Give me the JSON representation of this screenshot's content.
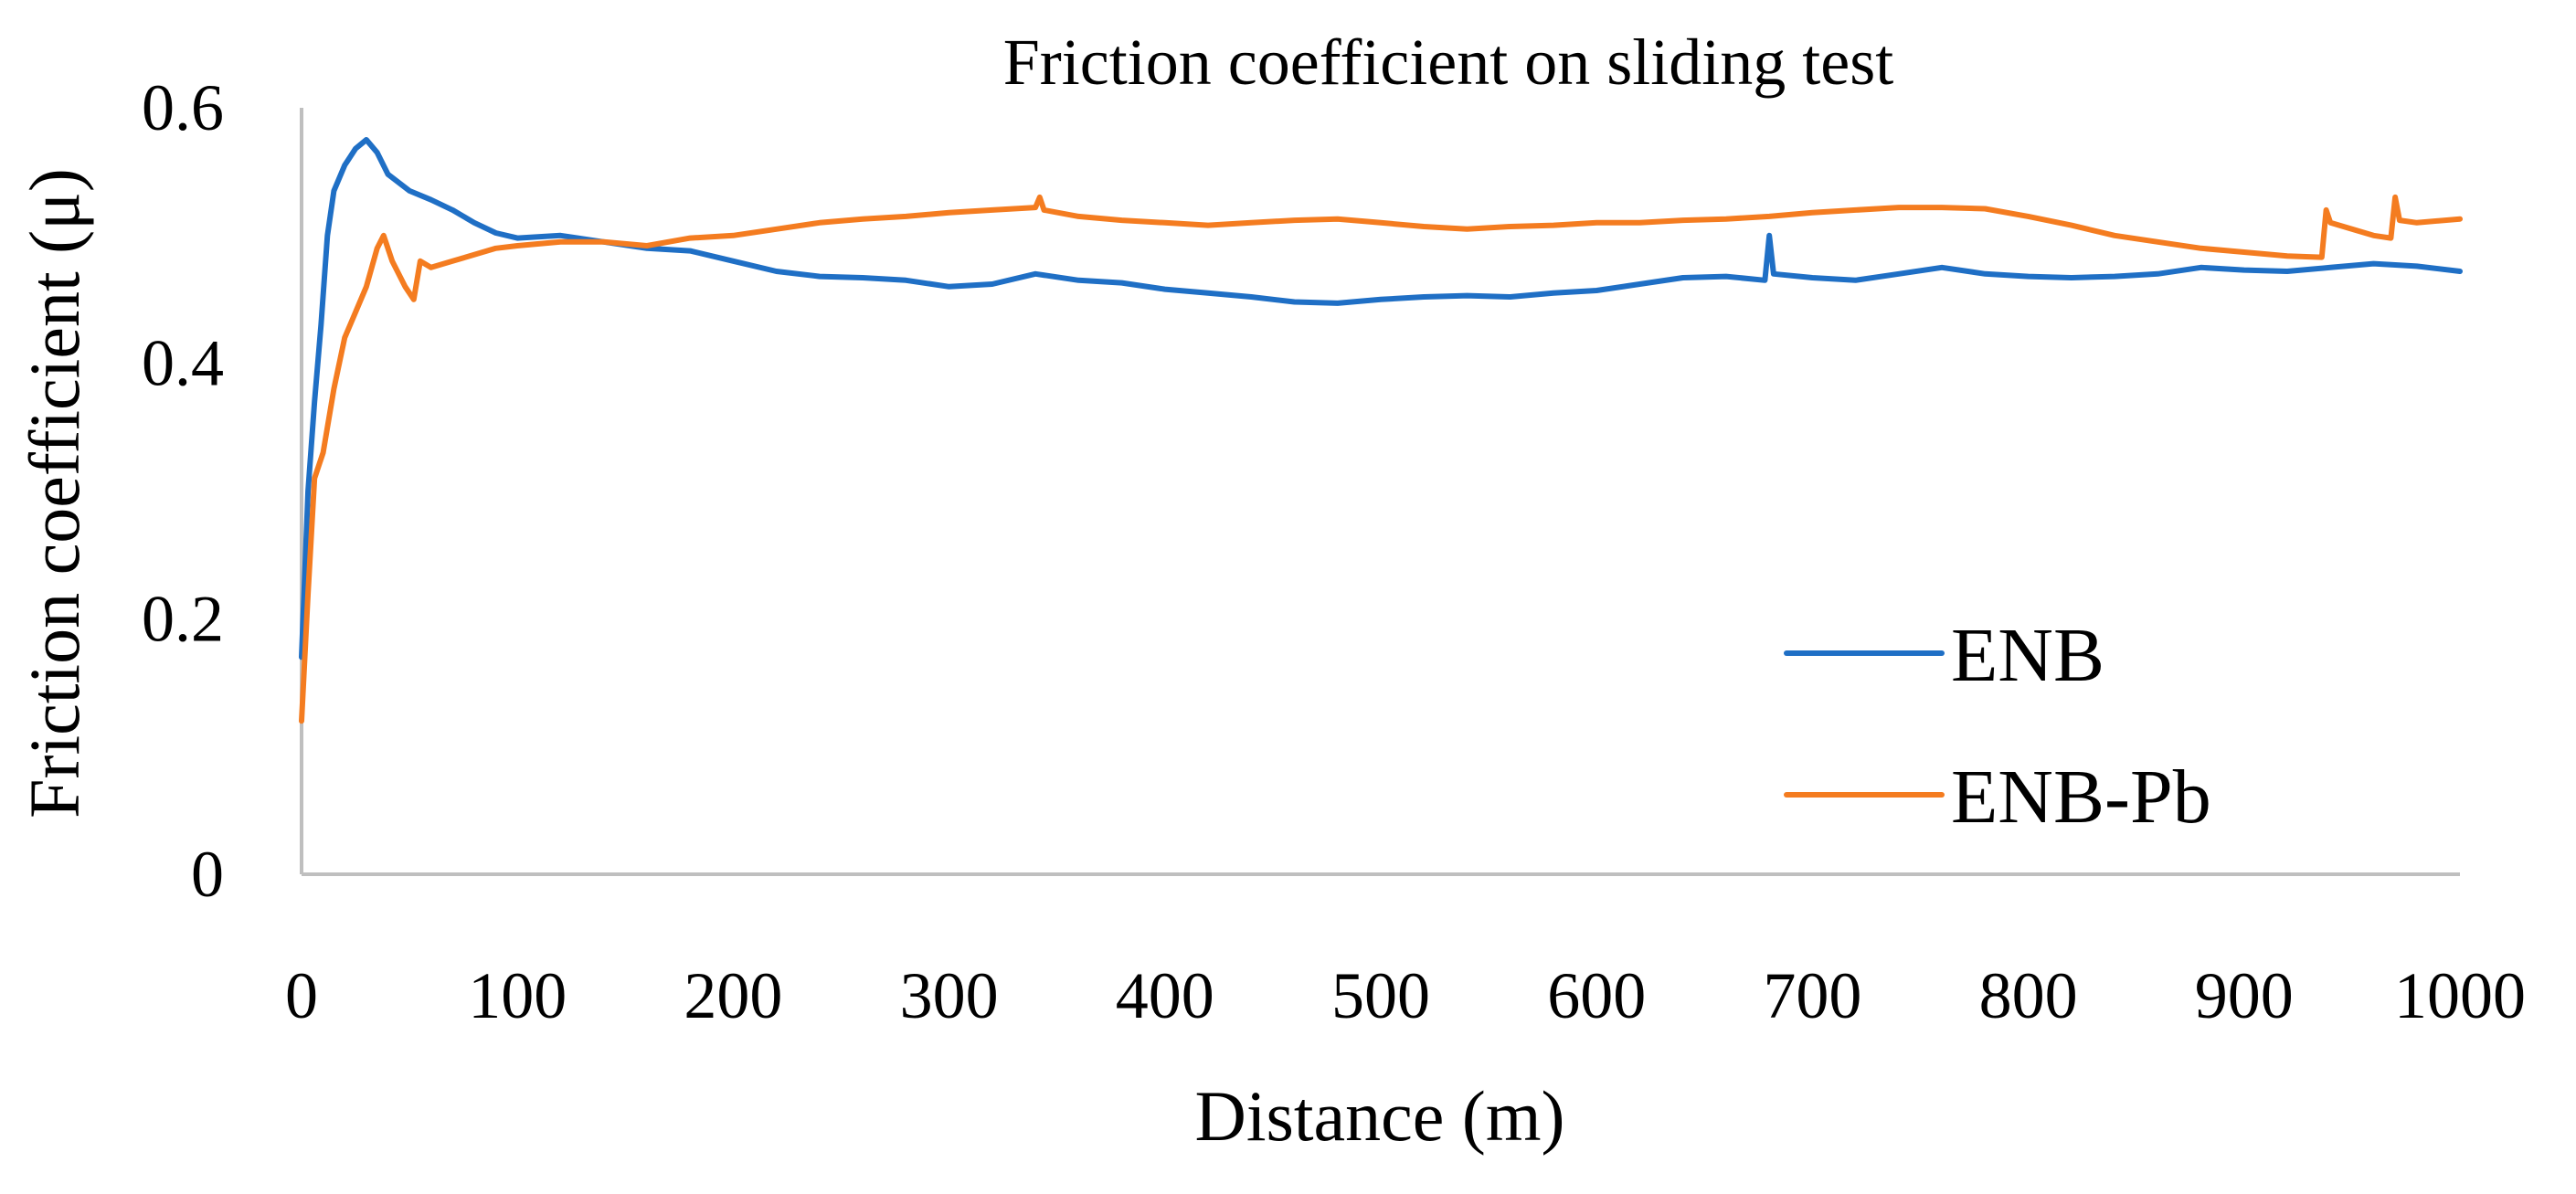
{
  "chart_data": {
    "type": "line",
    "title": "Friction coefficient on sliding test",
    "xlabel": "Distance (m)",
    "ylabel": "Friction coefficient (μ)",
    "xlim": [
      0,
      1000
    ],
    "ylim": [
      0,
      0.6
    ],
    "x_ticks": [
      0,
      100,
      200,
      300,
      400,
      500,
      600,
      700,
      800,
      900,
      1000
    ],
    "x_tick_labels": [
      "0",
      "100",
      "200",
      "300",
      "400",
      "500",
      "600",
      "700",
      "800",
      "900",
      "1000"
    ],
    "y_ticks": [
      0,
      0.2,
      0.4,
      0.6
    ],
    "y_tick_labels": [
      "0",
      "0.2",
      "0.4",
      "0.6"
    ],
    "grid": false,
    "legend_position": "right",
    "series": [
      {
        "name": "ENB",
        "color": "#1f6fc5",
        "x": [
          0,
          3,
          6,
          9,
          12,
          15,
          20,
          25,
          30,
          35,
          40,
          50,
          60,
          70,
          80,
          90,
          100,
          120,
          140,
          160,
          180,
          200,
          220,
          240,
          260,
          280,
          300,
          320,
          340,
          360,
          380,
          400,
          420,
          440,
          460,
          480,
          500,
          520,
          540,
          560,
          580,
          600,
          620,
          640,
          660,
          678,
          680,
          682,
          700,
          720,
          740,
          760,
          780,
          800,
          820,
          840,
          860,
          880,
          900,
          920,
          940,
          960,
          980,
          1000
        ],
        "y": [
          0.17,
          0.3,
          0.37,
          0.43,
          0.5,
          0.535,
          0.555,
          0.568,
          0.575,
          0.565,
          0.548,
          0.535,
          0.528,
          0.52,
          0.51,
          0.502,
          0.498,
          0.5,
          0.495,
          0.49,
          0.488,
          0.48,
          0.472,
          0.468,
          0.467,
          0.465,
          0.46,
          0.462,
          0.47,
          0.465,
          0.463,
          0.458,
          0.455,
          0.452,
          0.448,
          0.447,
          0.45,
          0.452,
          0.453,
          0.452,
          0.455,
          0.457,
          0.462,
          0.467,
          0.468,
          0.465,
          0.5,
          0.47,
          0.467,
          0.465,
          0.47,
          0.475,
          0.47,
          0.468,
          0.467,
          0.468,
          0.47,
          0.475,
          0.473,
          0.472,
          0.475,
          0.478,
          0.476,
          0.472
        ]
      },
      {
        "name": "ENB-Pb",
        "color": "#f47c20",
        "x": [
          0,
          3,
          6,
          10,
          15,
          20,
          25,
          30,
          35,
          38,
          42,
          48,
          52,
          55,
          60,
          70,
          80,
          90,
          100,
          120,
          140,
          160,
          180,
          200,
          220,
          240,
          260,
          280,
          300,
          320,
          340,
          342,
          344,
          360,
          380,
          400,
          420,
          440,
          460,
          480,
          500,
          520,
          540,
          560,
          580,
          600,
          620,
          640,
          660,
          680,
          700,
          720,
          740,
          760,
          780,
          800,
          820,
          840,
          860,
          880,
          900,
          920,
          936,
          938,
          940,
          960,
          968,
          970,
          972,
          980,
          1000
        ],
        "y": [
          0.12,
          0.22,
          0.31,
          0.33,
          0.38,
          0.42,
          0.44,
          0.46,
          0.49,
          0.5,
          0.48,
          0.46,
          0.45,
          0.48,
          0.475,
          0.48,
          0.485,
          0.49,
          0.492,
          0.495,
          0.495,
          0.492,
          0.498,
          0.5,
          0.505,
          0.51,
          0.513,
          0.515,
          0.518,
          0.52,
          0.522,
          0.53,
          0.52,
          0.515,
          0.512,
          0.51,
          0.508,
          0.51,
          0.512,
          0.513,
          0.51,
          0.507,
          0.505,
          0.507,
          0.508,
          0.51,
          0.51,
          0.512,
          0.513,
          0.515,
          0.518,
          0.52,
          0.522,
          0.522,
          0.521,
          0.515,
          0.508,
          0.5,
          0.495,
          0.49,
          0.487,
          0.484,
          0.483,
          0.52,
          0.51,
          0.5,
          0.498,
          0.53,
          0.512,
          0.51,
          0.513
        ]
      }
    ]
  }
}
